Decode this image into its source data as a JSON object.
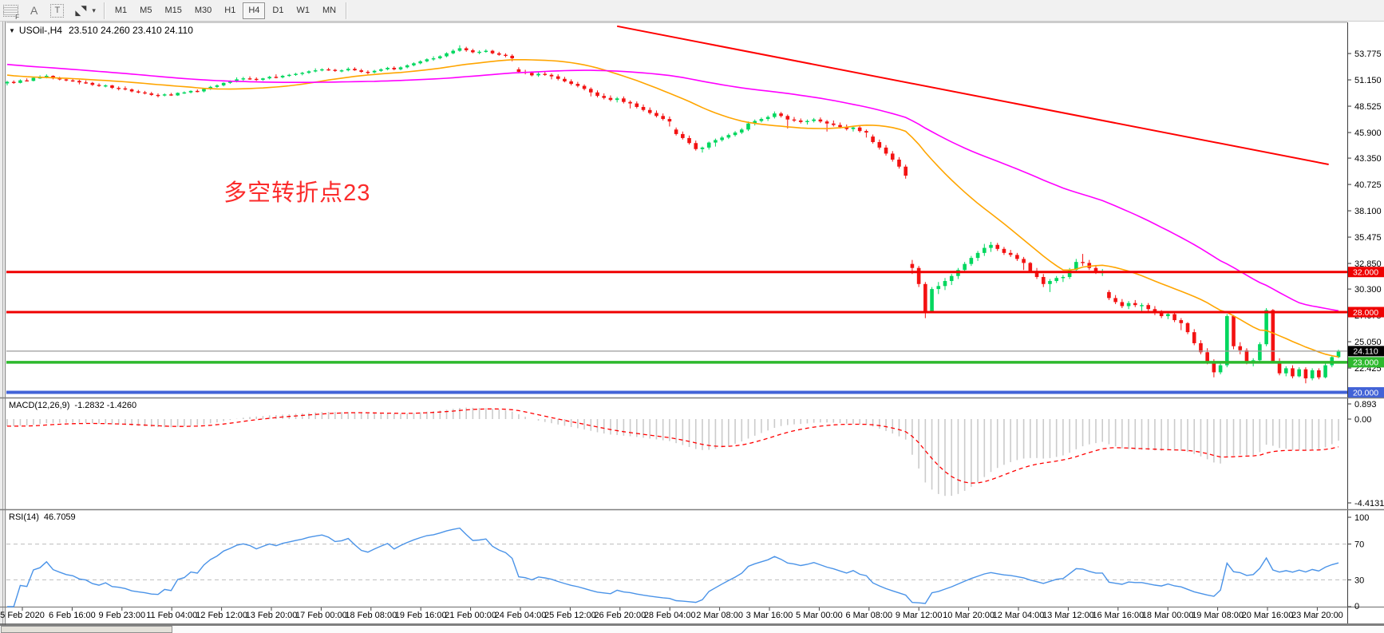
{
  "toolbar": {
    "tools": {
      "fibo_grid_label": "F",
      "text_a_label": "A",
      "text_box_label": "T",
      "arrow_ne": "◥",
      "arrow_sw": "◣",
      "caret": "▾"
    },
    "timeframes": [
      "M1",
      "M5",
      "M15",
      "M30",
      "H1",
      "H4",
      "D1",
      "W1",
      "MN"
    ],
    "active_timeframe": "H4"
  },
  "chart": {
    "symbol_period": "USOil-,H4",
    "ohlc": "23.510 24.260 23.410 24.110",
    "dropdown_glyph": "▼"
  },
  "annotation": {
    "text": "多空转折点23",
    "color": "#fb2b2b"
  },
  "macd": {
    "label": "MACD(12,26,9)",
    "values": "-1.2832 -1.4260",
    "scale_labels": [
      "0.893",
      "0.00",
      "-4.4131"
    ]
  },
  "rsi": {
    "label": "RSI(14)",
    "value": "46.7059",
    "scale_labels": [
      100,
      70,
      30,
      0
    ],
    "levels": [
      70,
      30
    ]
  },
  "price_axis": {
    "ticks": [
      53.775,
      51.15,
      48.525,
      45.9,
      43.35,
      40.725,
      38.1,
      35.475,
      32.85,
      30.3,
      27.675,
      25.05,
      22.425
    ]
  },
  "levels": [
    {
      "price": 32,
      "label": "32.000",
      "color": "#ef0000",
      "width": 3
    },
    {
      "price": 28,
      "label": "28.000",
      "color": "#ef0000",
      "width": 3
    },
    {
      "price": 23,
      "label": "23.000",
      "color": "#2db92d",
      "width": 3.5
    },
    {
      "price": 20,
      "label": "20.000",
      "color": "#4263d7",
      "width": 4
    }
  ],
  "current_price": {
    "value": 24.11,
    "label": "24.110",
    "badge_color": "#000000",
    "line_color": "#9b9b9b"
  },
  "chart_data": {
    "type": "candlestick",
    "symbol": "USOil",
    "timeframe": "H4",
    "title": "USOil-,H4 23.510 24.260 23.410 24.110",
    "candle_colors": {
      "up": "#00d75e",
      "down": "#f31212"
    },
    "seed": {
      "start": 54.5,
      "end": 51.0,
      "count": 60
    },
    "ma_fast": {
      "period": 24,
      "color": "#ffa500"
    },
    "ma_slow": {
      "period": 60,
      "color": "#ff00ff"
    },
    "macd_params": {
      "fast": 12,
      "slow": 26,
      "signal": 9,
      "histogram_color": "#cbcbcb",
      "signal_color": "#ff0000"
    },
    "rsi_params": {
      "period": 14,
      "color": "#4a93e8"
    },
    "trendline": {
      "bar1": 93,
      "price1": 56.5,
      "bar2": 201.5,
      "price2": 42.72,
      "color": "#ff0000"
    },
    "annotation_anchor": {
      "bar": 33,
      "price": 41.3
    },
    "candles": [
      [
        50.8,
        51.05,
        50.6,
        50.95
      ],
      [
        50.95,
        51.1,
        50.75,
        50.85
      ],
      [
        50.85,
        51.2,
        50.8,
        51.1
      ],
      [
        51.1,
        51.3,
        51.0,
        51.05
      ],
      [
        51.05,
        51.45,
        51.0,
        51.35
      ],
      [
        51.35,
        51.6,
        51.25,
        51.4
      ],
      [
        51.4,
        51.7,
        51.3,
        51.55
      ],
      [
        51.55,
        51.6,
        51.2,
        51.3
      ],
      [
        51.3,
        51.45,
        51.1,
        51.2
      ],
      [
        51.2,
        51.35,
        51.0,
        51.1
      ],
      [
        51.1,
        51.25,
        50.95,
        51.05
      ],
      [
        51.05,
        51.15,
        50.7,
        50.9
      ],
      [
        50.9,
        51.1,
        50.75,
        50.85
      ],
      [
        50.85,
        50.95,
        50.55,
        50.65
      ],
      [
        50.65,
        50.8,
        50.45,
        50.55
      ],
      [
        50.55,
        50.7,
        50.4,
        50.6
      ],
      [
        50.6,
        50.65,
        50.25,
        50.35
      ],
      [
        50.35,
        50.5,
        50.1,
        50.3
      ],
      [
        50.3,
        50.5,
        50.1,
        50.2
      ],
      [
        50.2,
        50.3,
        49.9,
        50.0
      ],
      [
        50.0,
        50.15,
        49.8,
        49.9
      ],
      [
        49.9,
        50.05,
        49.7,
        49.8
      ],
      [
        49.8,
        49.95,
        49.55,
        49.65
      ],
      [
        49.65,
        49.8,
        49.4,
        49.6
      ],
      [
        49.6,
        49.8,
        49.5,
        49.7
      ],
      [
        49.7,
        49.85,
        49.55,
        49.6
      ],
      [
        49.6,
        49.9,
        49.55,
        49.85
      ],
      [
        49.85,
        50.0,
        49.75,
        49.9
      ],
      [
        49.9,
        50.1,
        49.8,
        50.05
      ],
      [
        50.05,
        50.2,
        49.9,
        50.0
      ],
      [
        50.0,
        50.3,
        49.9,
        50.25
      ],
      [
        50.25,
        50.55,
        50.15,
        50.45
      ],
      [
        50.45,
        50.7,
        50.35,
        50.6
      ],
      [
        50.6,
        50.9,
        50.5,
        50.85
      ],
      [
        50.85,
        51.1,
        50.75,
        51.0
      ],
      [
        51.0,
        51.4,
        50.9,
        51.2
      ],
      [
        51.2,
        51.45,
        51.05,
        51.3
      ],
      [
        51.3,
        51.5,
        51.15,
        51.25
      ],
      [
        51.25,
        51.4,
        51.05,
        51.15
      ],
      [
        51.15,
        51.35,
        51.05,
        51.3
      ],
      [
        51.3,
        51.55,
        51.2,
        51.45
      ],
      [
        51.45,
        51.7,
        51.3,
        51.4
      ],
      [
        51.4,
        51.65,
        51.3,
        51.55
      ],
      [
        51.55,
        51.75,
        51.45,
        51.65
      ],
      [
        51.65,
        51.85,
        51.55,
        51.75
      ],
      [
        51.75,
        51.95,
        51.6,
        51.85
      ],
      [
        51.85,
        52.1,
        51.75,
        52.0
      ],
      [
        52.0,
        52.3,
        51.9,
        52.1
      ],
      [
        52.1,
        52.3,
        52.0,
        52.2
      ],
      [
        52.2,
        52.35,
        52.05,
        52.15
      ],
      [
        52.15,
        52.25,
        51.95,
        52.05
      ],
      [
        52.05,
        52.2,
        51.9,
        52.1
      ],
      [
        52.1,
        52.4,
        52.0,
        52.25
      ],
      [
        52.25,
        52.4,
        52.05,
        52.1
      ],
      [
        52.1,
        52.25,
        51.85,
        51.95
      ],
      [
        51.95,
        52.1,
        51.7,
        51.9
      ],
      [
        51.9,
        52.15,
        51.8,
        52.05
      ],
      [
        52.05,
        52.3,
        51.95,
        52.2
      ],
      [
        52.2,
        52.45,
        52.1,
        52.35
      ],
      [
        52.35,
        52.5,
        52.1,
        52.2
      ],
      [
        52.2,
        52.5,
        52.1,
        52.4
      ],
      [
        52.4,
        52.7,
        52.3,
        52.6
      ],
      [
        52.6,
        52.9,
        52.5,
        52.8
      ],
      [
        52.8,
        53.1,
        52.7,
        53.0
      ],
      [
        53.0,
        53.3,
        52.9,
        53.2
      ],
      [
        53.2,
        53.5,
        53.05,
        53.3
      ],
      [
        53.3,
        53.6,
        53.2,
        53.5
      ],
      [
        53.5,
        53.9,
        53.4,
        53.8
      ],
      [
        53.8,
        54.2,
        53.7,
        54.05
      ],
      [
        54.05,
        54.6,
        53.95,
        54.3
      ],
      [
        54.3,
        54.45,
        53.95,
        54.1
      ],
      [
        54.1,
        54.25,
        53.8,
        53.9
      ],
      [
        53.9,
        54.1,
        53.7,
        53.95
      ],
      [
        53.95,
        54.2,
        53.85,
        54.05
      ],
      [
        54.05,
        54.15,
        53.7,
        53.8
      ],
      [
        53.8,
        53.95,
        53.55,
        53.65
      ],
      [
        53.65,
        53.8,
        53.4,
        53.55
      ],
      [
        53.55,
        53.7,
        53.0,
        53.3
      ],
      [
        52.2,
        52.4,
        51.8,
        51.95
      ],
      [
        51.95,
        52.15,
        51.7,
        51.85
      ],
      [
        51.85,
        52.0,
        51.5,
        51.6
      ],
      [
        51.6,
        51.9,
        51.45,
        51.75
      ],
      [
        51.75,
        51.95,
        51.55,
        51.65
      ],
      [
        51.65,
        51.8,
        51.2,
        51.5
      ],
      [
        51.5,
        51.7,
        51.1,
        51.25
      ],
      [
        51.25,
        51.45,
        50.9,
        51.0
      ],
      [
        51.0,
        51.2,
        50.6,
        50.75
      ],
      [
        50.75,
        50.95,
        50.4,
        50.55
      ],
      [
        50.55,
        50.7,
        50.1,
        50.25
      ],
      [
        50.25,
        50.4,
        49.5,
        49.9
      ],
      [
        49.9,
        50.1,
        49.4,
        49.55
      ],
      [
        49.55,
        49.8,
        49.2,
        49.35
      ],
      [
        49.35,
        49.6,
        49.0,
        49.15
      ],
      [
        49.15,
        49.45,
        48.9,
        49.3
      ],
      [
        49.3,
        49.5,
        48.8,
        48.95
      ],
      [
        48.95,
        49.1,
        48.3,
        48.8
      ],
      [
        48.8,
        49.0,
        48.3,
        48.45
      ],
      [
        48.45,
        48.7,
        48.0,
        48.15
      ],
      [
        48.15,
        48.4,
        47.7,
        47.85
      ],
      [
        47.85,
        48.1,
        47.4,
        47.55
      ],
      [
        47.55,
        47.8,
        47.1,
        47.25
      ],
      [
        47.25,
        47.5,
        46.5,
        47.0
      ],
      [
        46.2,
        46.4,
        45.6,
        45.75
      ],
      [
        45.75,
        46.0,
        45.2,
        45.35
      ],
      [
        45.35,
        45.6,
        44.7,
        44.85
      ],
      [
        44.85,
        45.1,
        44.1,
        44.25
      ],
      [
        44.25,
        44.5,
        43.9,
        44.4
      ],
      [
        44.4,
        45.0,
        44.2,
        44.9
      ],
      [
        44.9,
        45.3,
        44.5,
        45.15
      ],
      [
        45.15,
        45.55,
        45.0,
        45.4
      ],
      [
        45.4,
        45.8,
        45.25,
        45.65
      ],
      [
        45.65,
        46.05,
        45.5,
        45.9
      ],
      [
        45.9,
        46.35,
        45.75,
        46.2
      ],
      [
        46.2,
        47.0,
        46.05,
        46.8
      ],
      [
        46.8,
        47.2,
        46.6,
        47.05
      ],
      [
        47.05,
        47.4,
        46.9,
        47.25
      ],
      [
        47.25,
        47.6,
        47.05,
        47.45
      ],
      [
        47.45,
        48.0,
        47.3,
        47.8
      ],
      [
        47.8,
        47.95,
        47.4,
        47.55
      ],
      [
        47.55,
        47.7,
        46.3,
        47.2
      ],
      [
        47.2,
        47.45,
        46.95,
        47.1
      ],
      [
        47.1,
        47.3,
        46.8,
        46.95
      ],
      [
        46.95,
        47.2,
        46.7,
        47.05
      ],
      [
        47.05,
        47.35,
        46.9,
        47.2
      ],
      [
        47.2,
        47.4,
        46.85,
        47.0
      ],
      [
        47.0,
        47.15,
        46.0,
        46.8
      ],
      [
        46.8,
        47.1,
        46.5,
        46.65
      ],
      [
        46.65,
        46.9,
        46.3,
        46.45
      ],
      [
        46.45,
        46.7,
        46.1,
        46.25
      ],
      [
        46.25,
        46.55,
        46.0,
        46.4
      ],
      [
        46.4,
        46.6,
        45.9,
        46.05
      ],
      [
        46.05,
        46.2,
        45.4,
        45.9
      ],
      [
        45.5,
        45.7,
        44.8,
        44.95
      ],
      [
        44.95,
        45.2,
        44.2,
        44.4
      ],
      [
        44.4,
        44.65,
        43.6,
        43.8
      ],
      [
        43.8,
        44.05,
        43.0,
        43.2
      ],
      [
        43.2,
        43.45,
        42.3,
        42.5
      ],
      [
        42.5,
        42.7,
        41.3,
        41.6
      ],
      [
        32.8,
        33.2,
        31.8,
        32.4
      ],
      [
        32.4,
        32.6,
        30.5,
        30.8
      ],
      [
        30.8,
        31.0,
        27.4,
        28.1
      ],
      [
        28.1,
        30.5,
        28.0,
        30.3
      ],
      [
        30.3,
        31.0,
        29.8,
        30.6
      ],
      [
        30.6,
        31.4,
        30.2,
        31.1
      ],
      [
        31.1,
        31.8,
        30.7,
        31.6
      ],
      [
        31.6,
        32.4,
        31.3,
        32.2
      ],
      [
        32.2,
        33.0,
        32.0,
        32.8
      ],
      [
        32.8,
        33.6,
        32.6,
        33.4
      ],
      [
        33.4,
        34.1,
        33.1,
        33.9
      ],
      [
        33.9,
        34.8,
        33.6,
        34.4
      ],
      [
        34.4,
        35.0,
        34.0,
        34.7
      ],
      [
        34.7,
        34.9,
        34.1,
        34.3
      ],
      [
        34.3,
        34.5,
        33.7,
        33.9
      ],
      [
        33.9,
        34.2,
        33.5,
        33.7
      ],
      [
        33.7,
        33.9,
        33.1,
        33.3
      ],
      [
        33.3,
        33.5,
        32.2,
        32.9
      ],
      [
        32.9,
        33.0,
        31.9,
        32.1
      ],
      [
        32.1,
        32.4,
        31.3,
        31.5
      ],
      [
        31.5,
        31.8,
        30.5,
        30.8
      ],
      [
        30.8,
        31.3,
        30.0,
        31.1
      ],
      [
        31.1,
        31.6,
        30.9,
        31.4
      ],
      [
        31.4,
        31.7,
        31.0,
        31.5
      ],
      [
        31.5,
        32.4,
        31.3,
        32.2
      ],
      [
        32.2,
        33.3,
        32.0,
        33.0
      ],
      [
        33.0,
        33.8,
        32.6,
        32.9
      ],
      [
        32.9,
        33.2,
        32.2,
        32.4
      ],
      [
        32.4,
        32.7,
        31.8,
        32.0
      ],
      [
        32.0,
        32.3,
        31.6,
        32.0
      ],
      [
        30.0,
        30.2,
        29.2,
        29.4
      ],
      [
        29.4,
        29.7,
        28.8,
        29.0
      ],
      [
        29.0,
        29.3,
        28.4,
        28.6
      ],
      [
        28.6,
        29.1,
        28.3,
        28.9
      ],
      [
        28.9,
        29.2,
        28.5,
        28.7
      ],
      [
        28.7,
        28.9,
        28.0,
        28.7
      ],
      [
        28.7,
        28.9,
        28.1,
        28.3
      ],
      [
        28.3,
        28.6,
        27.7,
        27.9
      ],
      [
        27.9,
        28.2,
        27.4,
        27.6
      ],
      [
        27.6,
        28.0,
        27.3,
        27.8
      ],
      [
        27.8,
        27.95,
        27.0,
        27.2
      ],
      [
        27.2,
        27.4,
        26.2,
        26.9
      ],
      [
        26.9,
        27.0,
        25.8,
        26.0
      ],
      [
        26.0,
        26.3,
        24.7,
        24.9
      ],
      [
        24.9,
        25.2,
        23.8,
        24.0
      ],
      [
        24.0,
        24.4,
        22.8,
        23.0
      ],
      [
        23.0,
        23.3,
        21.5,
        22.0
      ],
      [
        22.0,
        22.9,
        21.8,
        22.7
      ],
      [
        22.7,
        27.8,
        22.5,
        27.6
      ],
      [
        27.6,
        27.7,
        24.3,
        24.6
      ],
      [
        24.6,
        25.0,
        23.8,
        24.2
      ],
      [
        24.2,
        24.4,
        22.8,
        23.0
      ],
      [
        23.0,
        23.4,
        22.6,
        23.2
      ],
      [
        23.2,
        25.0,
        23.0,
        24.8
      ],
      [
        24.8,
        28.4,
        24.6,
        28.2
      ],
      [
        28.2,
        28.3,
        22.9,
        23.1
      ],
      [
        23.1,
        23.4,
        21.7,
        21.9
      ],
      [
        21.9,
        22.6,
        21.6,
        22.4
      ],
      [
        22.4,
        22.7,
        21.4,
        21.6
      ],
      [
        21.6,
        22.5,
        21.5,
        22.3
      ],
      [
        22.3,
        22.5,
        20.9,
        21.4
      ],
      [
        21.4,
        22.4,
        21.2,
        22.2
      ],
      [
        22.2,
        22.4,
        21.3,
        21.5
      ],
      [
        21.5,
        22.9,
        21.4,
        22.7
      ],
      [
        22.7,
        23.6,
        22.5,
        23.51
      ],
      [
        23.51,
        24.26,
        23.41,
        24.11
      ]
    ],
    "date_labels": [
      "5 Feb 2020",
      "6 Feb 16:00",
      "9 Feb 23:00",
      "11 Feb 04:00",
      "12 Feb 12:00",
      "13 Feb 20:00",
      "17 Feb 00:00",
      "18 Feb 08:00",
      "19 Feb 16:00",
      "21 Feb 00:00",
      "24 Feb 04:00",
      "25 Feb 12:00",
      "26 Feb 20:00",
      "28 Feb 04:00",
      "2 Mar 08:00",
      "3 Mar 16:00",
      "5 Mar 00:00",
      "6 Mar 08:00",
      "9 Mar 12:00",
      "10 Mar 20:00",
      "12 Mar 04:00",
      "13 Mar 12:00",
      "16 Mar 16:00",
      "18 Mar 00:00",
      "19 Mar 08:00",
      "20 Mar 16:00",
      "23 Mar 20:00"
    ]
  }
}
